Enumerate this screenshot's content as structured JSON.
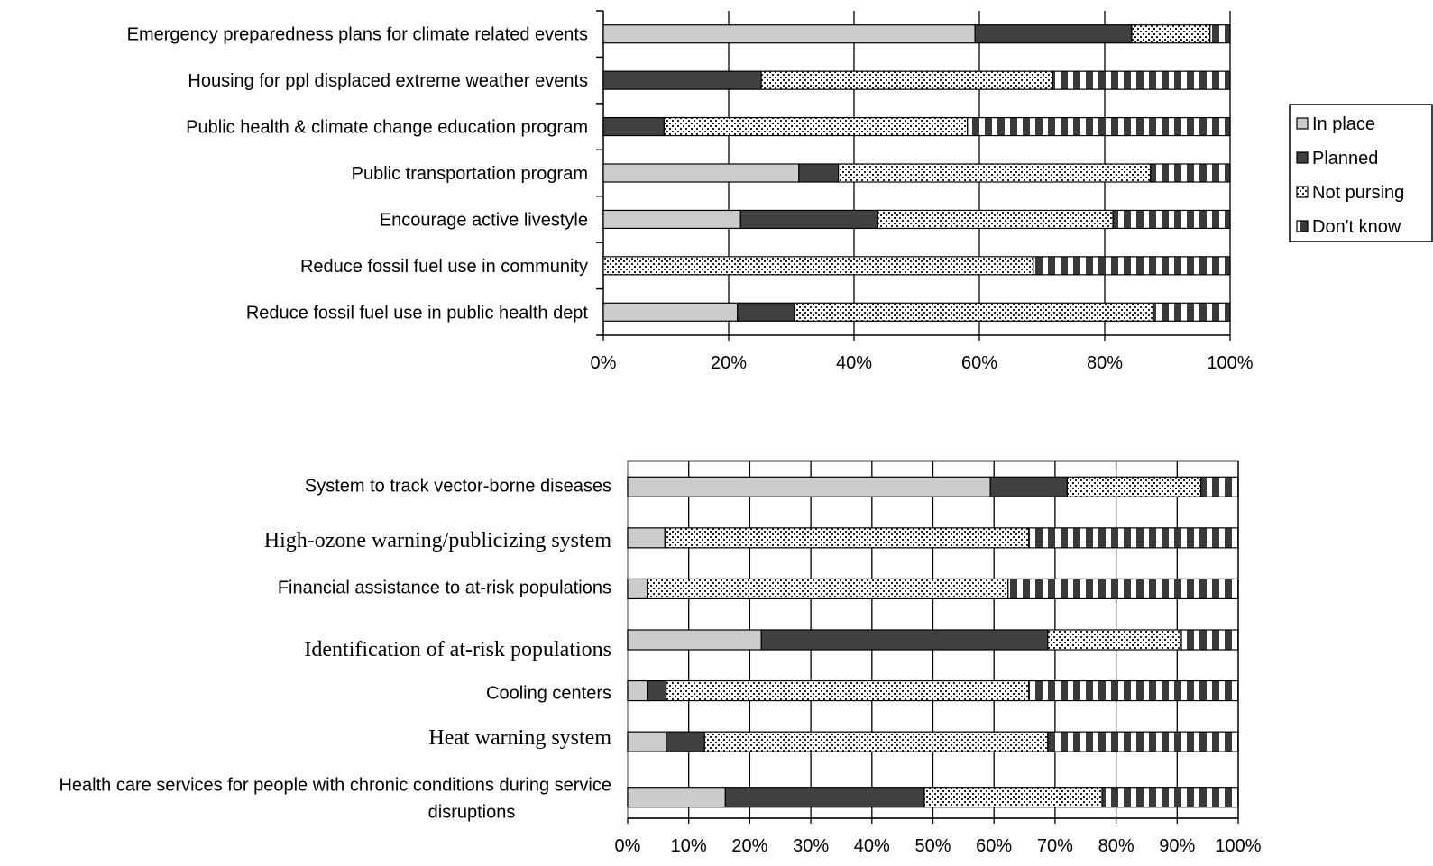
{
  "chart_data": [
    {
      "type": "bar",
      "orientation": "horizontal",
      "stacked": true,
      "percent": true,
      "categories": [
        "Emergency preparedness plans for climate related events",
        "Housing for ppl displaced extreme weather events",
        "Public health & climate change education program",
        "Public transportation program",
        "Encourage active livestyle",
        "Reduce fossil fuel use in community",
        "Reduce fossil fuel use in public health dept"
      ],
      "series": [
        {
          "name": "In place",
          "pattern": "solid-light",
          "values": [
            59.3,
            0,
            0,
            31.2,
            21.9,
            0,
            21.4
          ]
        },
        {
          "name": "Planned",
          "pattern": "solid-dark",
          "values": [
            25.0,
            25.2,
            9.7,
            6.3,
            21.9,
            0,
            9.1
          ]
        },
        {
          "name": "Not pursing",
          "pattern": "dotted",
          "values": [
            12.5,
            46.5,
            48.4,
            49.8,
            37.5,
            68.6,
            57.2
          ]
        },
        {
          "name": "Don't know",
          "pattern": "striped",
          "values": [
            3.2,
            28.3,
            41.9,
            12.7,
            18.7,
            31.4,
            12.3
          ]
        }
      ],
      "xticks": [
        "0%",
        "20%",
        "40%",
        "60%",
        "80%",
        "100%"
      ],
      "xlim": [
        0,
        100
      ],
      "grid": true,
      "legend": "right"
    },
    {
      "type": "bar",
      "orientation": "horizontal",
      "stacked": true,
      "percent": true,
      "categories": [
        {
          "lines": [
            "System to track vector-borne diseases"
          ],
          "font": "sans"
        },
        {
          "lines": [
            "High-ozone warning/publicizing system"
          ],
          "font": "serif"
        },
        {
          "lines": [
            "Financial assistance to at-risk populations"
          ],
          "font": "sans"
        },
        {
          "lines": [
            "Identification of at-risk populations"
          ],
          "font": "serif"
        },
        {
          "lines": [
            "Cooling centers"
          ],
          "font": "sans"
        },
        {
          "lines": [
            "Heat warning system"
          ],
          "font": "serif"
        },
        {
          "lines": [
            "Health care services for people with chronic conditions during service",
            "disruptions"
          ],
          "font": "sans"
        }
      ],
      "series": [
        {
          "name": "In place",
          "pattern": "solid-light",
          "values": [
            59.4,
            6.1,
            3.2,
            21.9,
            3.2,
            6.3,
            16.0
          ]
        },
        {
          "name": "Planned",
          "pattern": "solid-dark",
          "values": [
            12.6,
            0,
            0,
            46.9,
            3.1,
            6.3,
            32.6
          ]
        },
        {
          "name": "Not pursing",
          "pattern": "dotted",
          "values": [
            21.9,
            59.6,
            59.1,
            21.9,
            59.4,
            56.2,
            29.1
          ]
        },
        {
          "name": "Don't know",
          "pattern": "striped",
          "values": [
            6.1,
            34.3,
            37.7,
            9.3,
            34.3,
            31.2,
            22.3
          ]
        }
      ],
      "xticks": [
        "0%",
        "10%",
        "20%",
        "30%",
        "40%",
        "50%",
        "60%",
        "70%",
        "80%",
        "90%",
        "100%"
      ],
      "xlim": [
        0,
        100
      ],
      "grid": true
    }
  ]
}
